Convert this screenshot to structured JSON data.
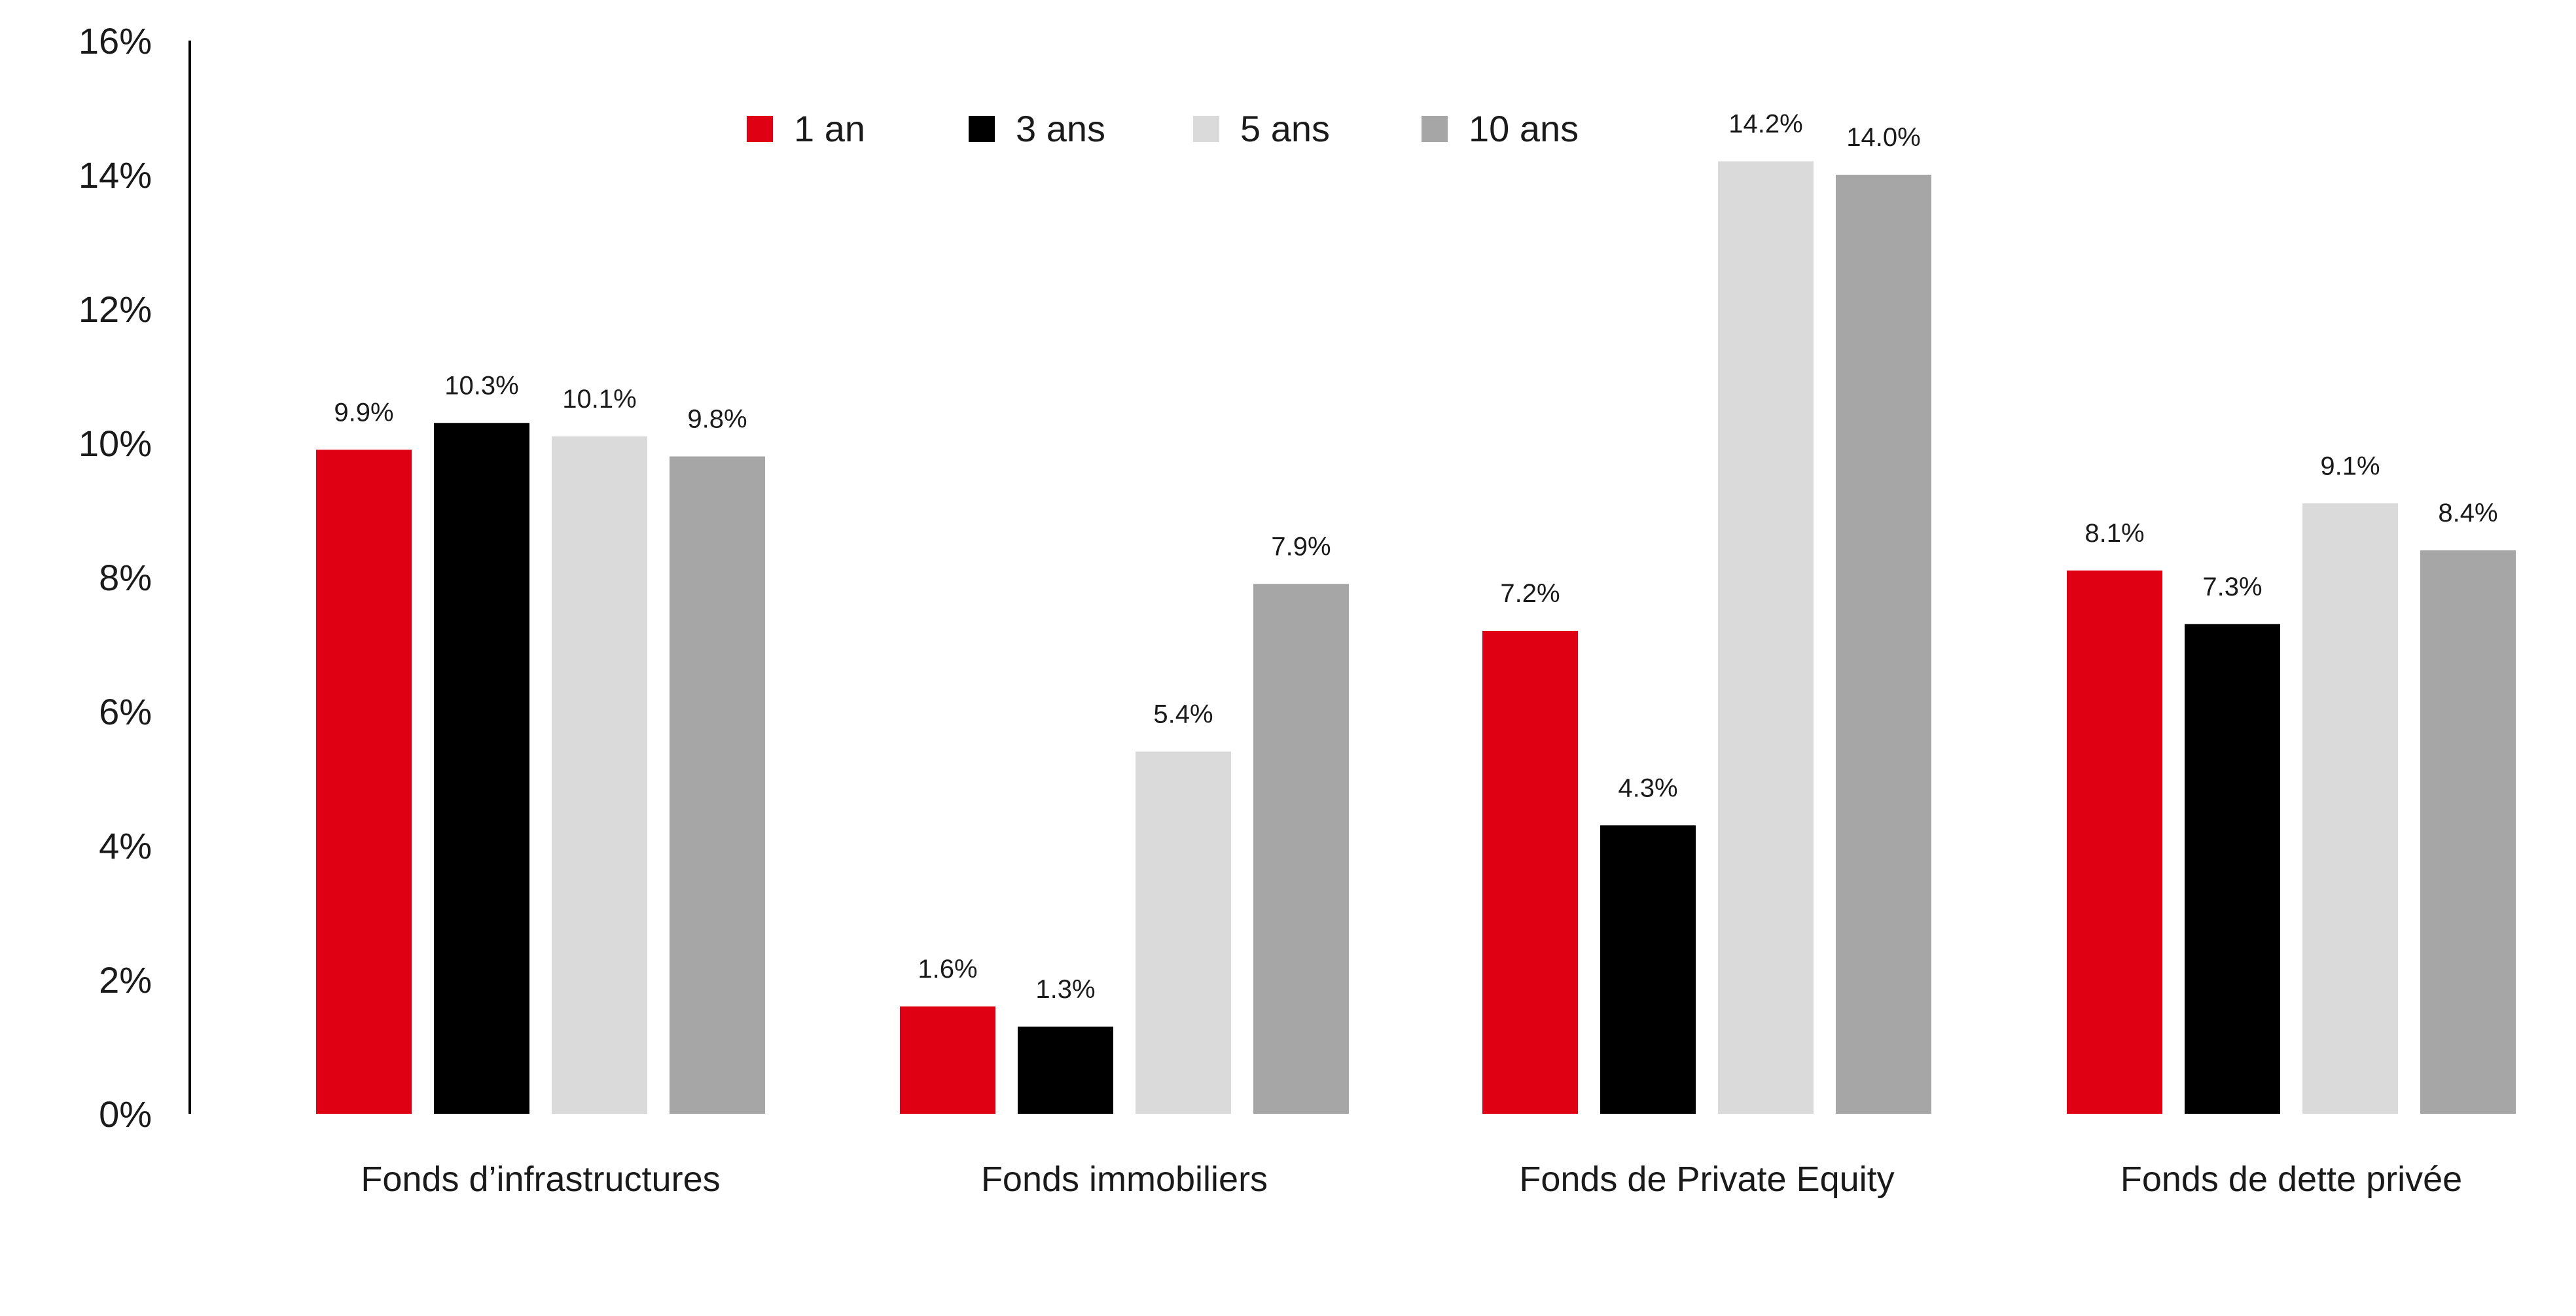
{
  "chart_data": {
    "type": "bar",
    "title": "",
    "xlabel": "",
    "ylabel": "",
    "ylim": [
      0,
      16
    ],
    "yticks": [
      0,
      2,
      4,
      6,
      8,
      10,
      12,
      14,
      16
    ],
    "ytick_labels": [
      "0%",
      "2%",
      "4%",
      "6%",
      "8%",
      "10%",
      "12%",
      "14%",
      "16%"
    ],
    "grid": false,
    "legend_position": "top-center",
    "categories": [
      "Fonds d’infrastructures",
      "Fonds immobiliers",
      "Fonds de Private Equity",
      "Fonds de dette privée"
    ],
    "series": [
      {
        "name": "1 an",
        "color": "#e00014",
        "values": [
          9.9,
          1.6,
          7.2,
          8.1
        ],
        "labels": [
          "9.9%",
          "1.6%",
          "7.2%",
          "8.1%"
        ]
      },
      {
        "name": "3 ans",
        "color": "#000000",
        "values": [
          10.3,
          1.3,
          4.3,
          7.3
        ],
        "labels": [
          "10.3%",
          "1.3%",
          "4.3%",
          "7.3%"
        ]
      },
      {
        "name": "5 ans",
        "color": "#dadada",
        "values": [
          10.1,
          5.4,
          14.2,
          9.1
        ],
        "labels": [
          "10.1%",
          "5.4%",
          "14.2%",
          "9.1%"
        ]
      },
      {
        "name": "10 ans",
        "color": "#a6a6a6",
        "values": [
          9.8,
          7.9,
          14.0,
          8.4
        ],
        "labels": [
          "9.8%",
          "7.9%",
          "14.0%",
          "8.4%"
        ]
      }
    ]
  }
}
